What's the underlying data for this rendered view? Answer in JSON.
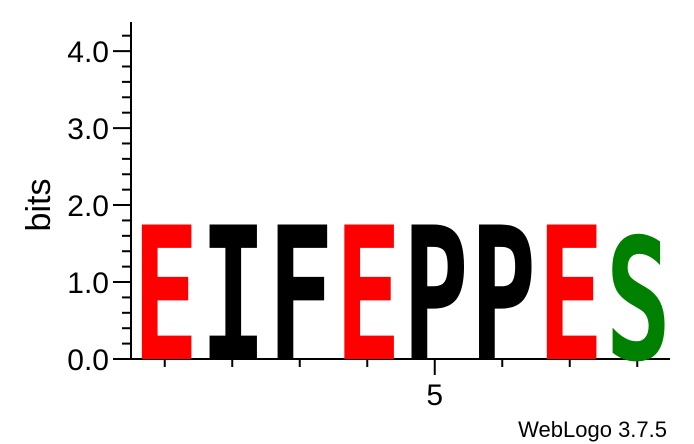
{
  "chart_data": {
    "type": "sequence-logo",
    "ylabel": "bits",
    "ylim": [
      0,
      4.3
    ],
    "yticks": [
      0.0,
      1.0,
      2.0,
      3.0,
      4.0
    ],
    "ytick_labels": [
      "0.0",
      "1.0",
      "2.0",
      "3.0",
      "4.0"
    ],
    "xtick_labels": [
      {
        "position": 5,
        "label": "5"
      }
    ],
    "positions": [
      {
        "position": 1,
        "letter": "E",
        "bits": 1.75,
        "color": "#ff0000"
      },
      {
        "position": 2,
        "letter": "I",
        "bits": 1.75,
        "color": "#000000"
      },
      {
        "position": 3,
        "letter": "F",
        "bits": 1.75,
        "color": "#000000"
      },
      {
        "position": 4,
        "letter": "E",
        "bits": 1.75,
        "color": "#ff0000"
      },
      {
        "position": 5,
        "letter": "P",
        "bits": 1.75,
        "color": "#000000"
      },
      {
        "position": 6,
        "letter": "P",
        "bits": 1.75,
        "color": "#000000"
      },
      {
        "position": 7,
        "letter": "E",
        "bits": 1.75,
        "color": "#ff0000"
      },
      {
        "position": 8,
        "letter": "S",
        "bits": 1.6,
        "color": "#008000"
      }
    ]
  },
  "credit": "WebLogo 3.7.5"
}
